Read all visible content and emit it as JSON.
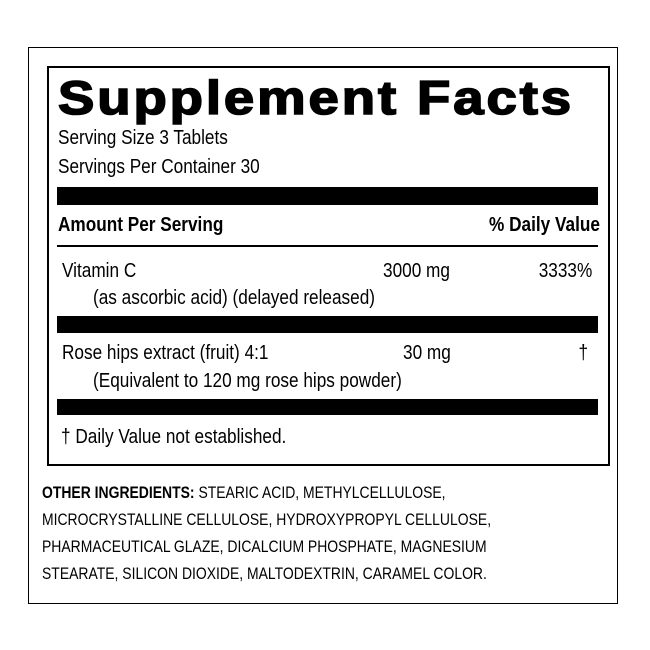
{
  "title": "Supplement Facts",
  "serving_size": "Serving Size 3 Tablets",
  "servings_per_container": "Servings Per Container 30",
  "header": {
    "amount": "Amount Per Serving",
    "daily_value": "% Daily Value"
  },
  "rows": [
    {
      "name": "Vitamin C",
      "note": "(as ascorbic acid) (delayed released)",
      "amount": "3000 mg",
      "dv": "3333%"
    },
    {
      "name": "Rose hips extract (fruit) 4:1",
      "note": "(Equivalent to 120 mg rose hips powder)",
      "amount": "30 mg",
      "dv": "†"
    }
  ],
  "footnote": "† Daily Value not established.",
  "other_ingredients": {
    "label": "OTHER INGREDIENTS:",
    "lines": [
      " STEARIC ACID, METHYLCELLULOSE,",
      "MICROCRYSTALLINE CELLULOSE, HYDROXYPROPYL CELLULOSE,",
      "PHARMACEUTICAL GLAZE, DICALCIUM PHOSPHATE, MAGNESIUM",
      "STEARATE, SILICON DIOXIDE, MALTODEXTRIN, CARAMEL COLOR."
    ]
  }
}
